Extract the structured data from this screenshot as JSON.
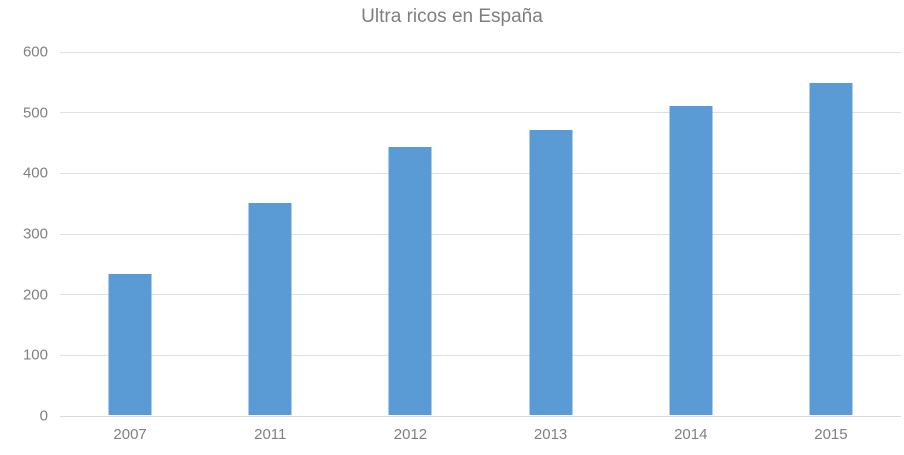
{
  "chart_data": {
    "type": "bar",
    "title": "Ultra ricos en España",
    "categories": [
      "2007",
      "2011",
      "2012",
      "2013",
      "2014",
      "2015"
    ],
    "values": [
      233,
      350,
      441,
      470,
      509,
      548
    ],
    "xlabel": "",
    "ylabel": "",
    "ylim": [
      0,
      600
    ],
    "ytick_step": 100,
    "ytick_labels": [
      "0",
      "100",
      "200",
      "300",
      "400",
      "500",
      "600"
    ],
    "grid": "horizontal",
    "legend": "none",
    "colors": {
      "bar": "#5b9bd5",
      "title_text": "#7f7f7f",
      "tick_text": "#808080",
      "gridline": "#e0e0e0",
      "baseline": "#d9d9d9",
      "background": "#ffffff"
    }
  }
}
